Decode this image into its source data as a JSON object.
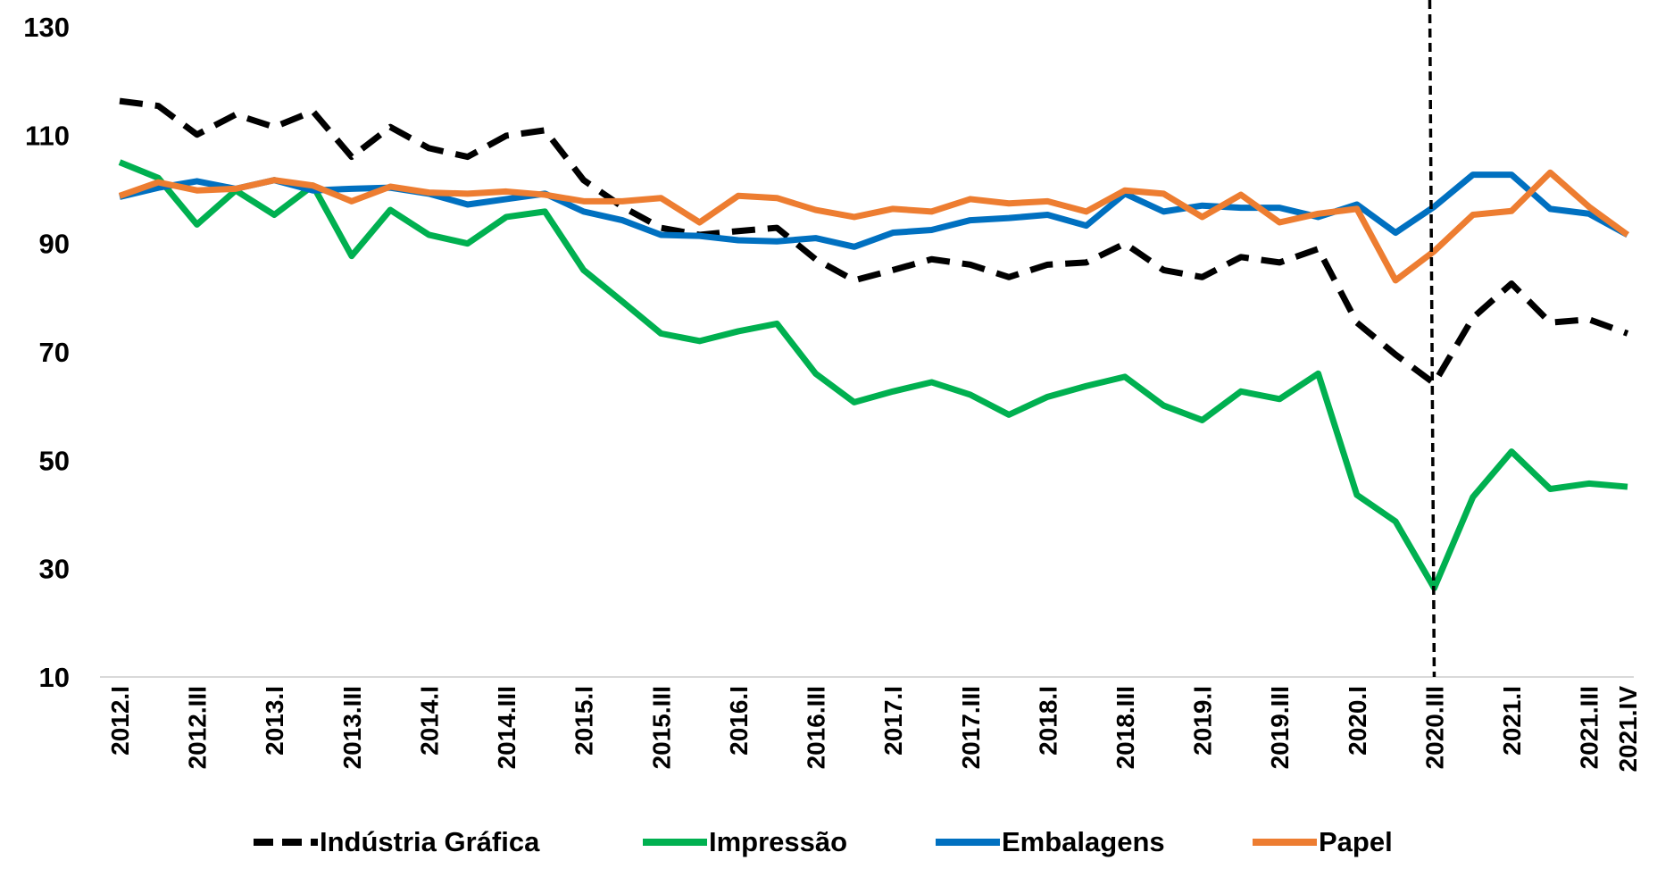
{
  "chart_data": {
    "type": "line",
    "categories": [
      "2012.I",
      null,
      "2012.III",
      null,
      "2013.I",
      null,
      "2013.III",
      null,
      "2014.I",
      null,
      "2014.III",
      null,
      "2015.I",
      null,
      "2015.III",
      null,
      "2016.I",
      null,
      "2016.III",
      null,
      "2017.I",
      null,
      "2017.III",
      null,
      "2018.I",
      null,
      "2018.III",
      null,
      "2019.I",
      null,
      "2019.III",
      null,
      "2020.I",
      null,
      "2020.III",
      null,
      "2021.I",
      null,
      "2021.III",
      "2021.IV"
    ],
    "series": [
      {
        "name": "Indústria Gráfica",
        "color": "#000000",
        "dashed": true,
        "values": [
          116.3,
          115.4,
          110.1,
          113.8,
          111.5,
          114.4,
          106,
          111.5,
          107.6,
          106,
          109.9,
          110.9,
          101.7,
          96.8,
          92.9,
          91.6,
          92.3,
          92.9,
          87.1,
          83.2,
          85.1,
          87.1,
          86.1,
          83.8,
          86.1,
          86.5,
          90,
          85.1,
          83.8,
          87.5,
          86.5,
          89,
          75.4,
          69.5,
          64.2,
          76.3,
          82.6,
          75.4,
          76,
          73.4
        ]
      },
      {
        "name": "Impressão",
        "color": "#00b050",
        "values": [
          105,
          102.1,
          93.5,
          99.8,
          95.3,
          100.7,
          87.7,
          96.2,
          91.6,
          90,
          94.9,
          95.9,
          85.1,
          79.3,
          73.4,
          72,
          73.8,
          75.2,
          66,
          60.7,
          62.7,
          64.4,
          62.1,
          58.4,
          61.7,
          63.7,
          65.4,
          60.1,
          57.4,
          62.7,
          61.3,
          66,
          43.6,
          38.7,
          26.4,
          43.2,
          51.6,
          44.7,
          45.7,
          45.1
        ]
      },
      {
        "name": "Embalagens",
        "color": "#0070c0",
        "values": [
          98.6,
          100.3,
          101.5,
          100.1,
          101.7,
          99.8,
          100.1,
          100.3,
          99.2,
          97.2,
          98.2,
          99.2,
          95.9,
          94.3,
          91.6,
          91.4,
          90.6,
          90.4,
          91,
          89.4,
          92,
          92.5,
          94.3,
          94.7,
          95.3,
          93.3,
          99.2,
          95.9,
          97,
          96.6,
          96.6,
          94.9,
          97.2,
          92,
          96.8,
          102.7,
          102.7,
          96.4,
          95.5,
          91.6
        ]
      },
      {
        "name": "Papel",
        "color": "#ed7d31",
        "values": [
          98.8,
          101.3,
          99.8,
          100.1,
          101.7,
          100.7,
          97.8,
          100.5,
          99.4,
          99.2,
          99.6,
          99,
          97.8,
          97.8,
          98.4,
          93.9,
          98.8,
          98.4,
          96.2,
          94.9,
          96.4,
          95.9,
          98.2,
          97.4,
          97.8,
          95.9,
          99.8,
          99.2,
          94.9,
          99,
          93.9,
          95.5,
          96.4,
          83.2,
          88.6,
          95.3,
          96,
          103.1,
          96.8,
          91.6
        ]
      }
    ],
    "reference_line": {
      "x": "2020.III"
    },
    "ylim": [
      10,
      130
    ],
    "yticks": [
      10,
      30,
      50,
      70,
      90,
      110,
      130
    ],
    "legend": "bottom"
  }
}
